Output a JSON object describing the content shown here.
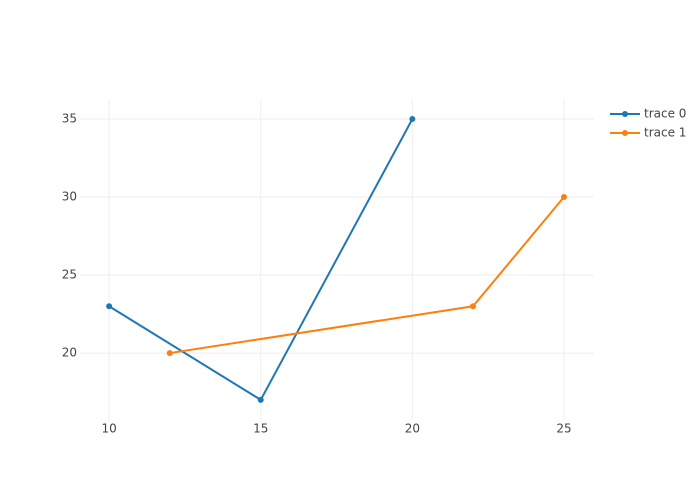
{
  "chart_data": {
    "type": "line",
    "series": [
      {
        "name": "trace 0",
        "color": "#1f77b4",
        "x": [
          10,
          15,
          20
        ],
        "values": [
          23,
          17,
          35
        ]
      },
      {
        "name": "trace 1",
        "color": "#ff7f0e",
        "x": [
          12,
          22,
          25
        ],
        "values": [
          20,
          23,
          30
        ]
      }
    ],
    "xlim": [
      9.04,
      25.99
    ],
    "xticks": [
      10,
      15,
      20,
      25
    ],
    "ylim": [
      15.71,
      36.22
    ],
    "yticks": [
      20,
      25,
      30,
      35
    ],
    "grid": true,
    "legend": "top-right"
  }
}
